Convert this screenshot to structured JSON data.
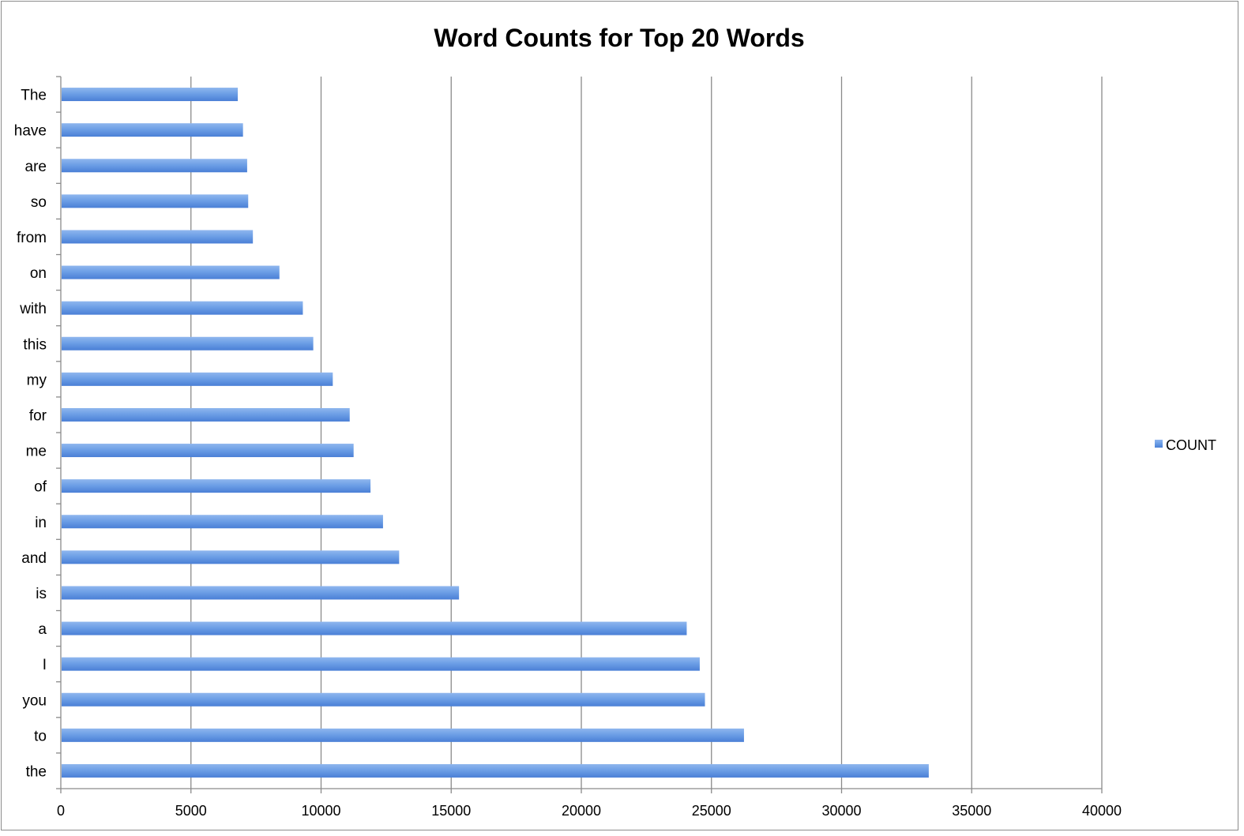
{
  "chart_data": {
    "type": "bar",
    "orientation": "horizontal",
    "title": "Word Counts for Top 20 Words",
    "xlabel": "",
    "ylabel": "",
    "xlim": [
      0,
      40000
    ],
    "x_ticks": [
      0,
      5000,
      10000,
      15000,
      20000,
      25000,
      30000,
      35000,
      40000
    ],
    "grid": "vertical major gridlines",
    "legend_position": "right",
    "categories": [
      "the",
      "to",
      "you",
      "I",
      "a",
      "is",
      "and",
      "in",
      "of",
      "me",
      "for",
      "my",
      "this",
      "with",
      "on",
      "from",
      "so",
      "are",
      "have",
      "The"
    ],
    "series": [
      {
        "name": "COUNT",
        "color": "#5b8fde",
        "values": [
          33350,
          26250,
          24750,
          24550,
          24050,
          15300,
          13000,
          12380,
          11900,
          11250,
          11100,
          10450,
          9700,
          9300,
          8400,
          7380,
          7200,
          7160,
          7000,
          6800
        ]
      }
    ]
  }
}
